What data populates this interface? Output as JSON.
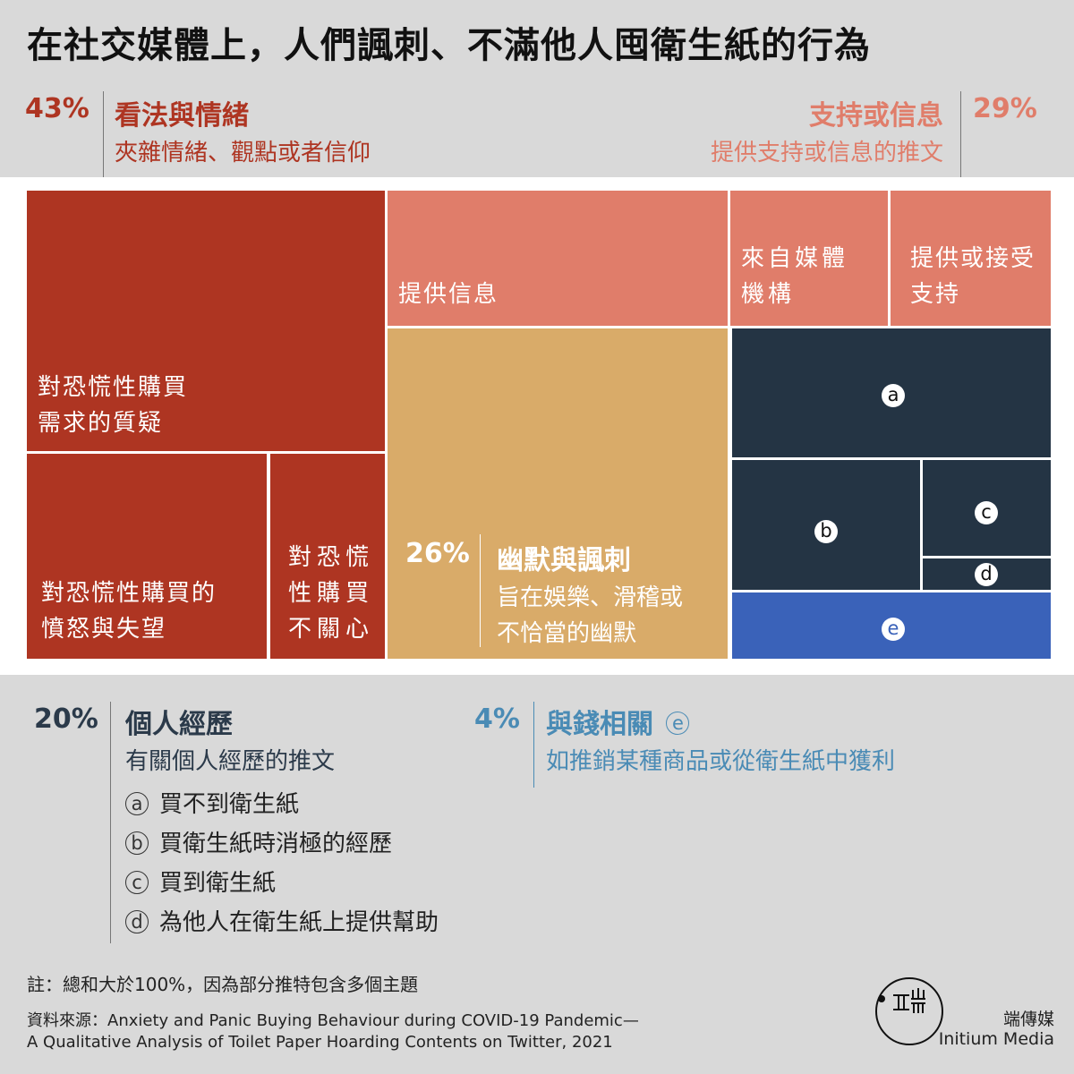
{
  "title": "在社交媒體上，人們諷刺、不滿他人囤衛生紙的行為",
  "colors": {
    "opinion": "#ae3522",
    "support": "#e07d6a",
    "humor": "#d9ab69",
    "personal": "#243444",
    "money": "#3a62b9",
    "personal_text": "#2b3a4a",
    "money_text": "#4a8bb5"
  },
  "legend": {
    "opinion": {
      "pct": "43%",
      "name": "看法與情緒",
      "desc": "夾雜情緒、觀點或者信仰"
    },
    "support": {
      "pct": "29%",
      "name": "支持或信息",
      "desc": "提供支持或信息的推文"
    },
    "humor": {
      "pct": "26%",
      "name": "幽默與諷刺",
      "desc_line1": "旨在娛樂、滑稽或",
      "desc_line2": "不恰當的幽默"
    },
    "personal": {
      "pct": "20%",
      "name": "個人經歷",
      "desc": "有關個人經歷的推文",
      "items": [
        {
          "key": "a",
          "label": "買不到衛生紙"
        },
        {
          "key": "b",
          "label": "買衛生紙時消極的經歷"
        },
        {
          "key": "c",
          "label": "買到衛生紙"
        },
        {
          "key": "d",
          "label": "為他人在衛生紙上提供幫助"
        }
      ]
    },
    "money": {
      "pct": "4%",
      "name": "與錢相關",
      "badge": "e",
      "desc": "如推銷某種商品或從衛生紙中獲利"
    }
  },
  "chart_data": {
    "type": "treemap",
    "note": "總和大於100%，因為部分推特包含多個主題",
    "categories": [
      {
        "name": "看法與情緒",
        "value": 43,
        "children": [
          {
            "label_line1": "對恐慌性購買",
            "label_line2": "需求的質疑"
          },
          {
            "label_line1": "對恐慌性購買的",
            "label_line2": "憤怒與失望"
          },
          {
            "label_line1": "對恐慌",
            "label_line2": "性購買",
            "label_line3": "不關心"
          }
        ]
      },
      {
        "name": "支持或信息",
        "value": 29,
        "children": [
          {
            "label_line1": "提供信息"
          },
          {
            "label_line1": "來自媒體",
            "label_line2": "機構"
          },
          {
            "label_line1": "提供或接受",
            "label_line2": "支持"
          }
        ]
      },
      {
        "name": "幽默與諷刺",
        "value": 26
      },
      {
        "name": "個人經歷",
        "value": 20,
        "children": [
          {
            "label_line1": "a"
          },
          {
            "label_line1": "b"
          },
          {
            "label_line1": "c"
          },
          {
            "label_line1": "d"
          }
        ]
      },
      {
        "name": "與錢相關",
        "value": 4,
        "children": [
          {
            "label_line1": "e"
          }
        ]
      }
    ]
  },
  "footer": {
    "note": "註：總和大於100%，因為部分推特包含多個主題",
    "source_line1": "資料來源：Anxiety and Panic Buying Behaviour during COVID-19 Pandemic—",
    "source_line2": "A Qualitative Analysis of Toilet Paper Hoarding Contents on Twitter, 2021",
    "brand_cn": "端傳媒",
    "brand_en": "Initium Media"
  }
}
